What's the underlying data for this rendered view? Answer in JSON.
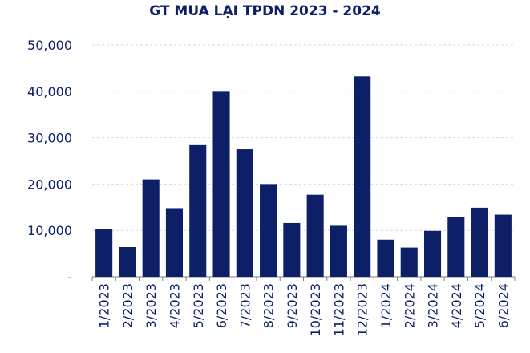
{
  "chart_data": {
    "type": "bar",
    "title": "GT MUA LẠI TPDN 2023 - 2024",
    "categories": [
      "1/2023",
      "2/2023",
      "3/2023",
      "4/2023",
      "5/2023",
      "6/2023",
      "7/2023",
      "8/2023",
      "9/2023",
      "10/2023",
      "11/2023",
      "12/2023",
      "1/2024",
      "2/2024",
      "3/2024",
      "4/2024",
      "5/2024",
      "6/2024"
    ],
    "values": [
      10300,
      6400,
      21000,
      14800,
      28400,
      39900,
      27500,
      20000,
      11600,
      17700,
      11000,
      43200,
      8000,
      6300,
      9900,
      12900,
      14900,
      13400
    ],
    "ylim": [
      0,
      50000
    ],
    "yticks": [
      0,
      10000,
      20000,
      30000,
      40000,
      50000
    ],
    "ytick_labels": [
      "-",
      "10,000",
      "20,000",
      "30,000",
      "40,000",
      "50,000"
    ],
    "bar_color": "#0d1f66",
    "grid": true,
    "xlabel": "",
    "ylabel": ""
  }
}
